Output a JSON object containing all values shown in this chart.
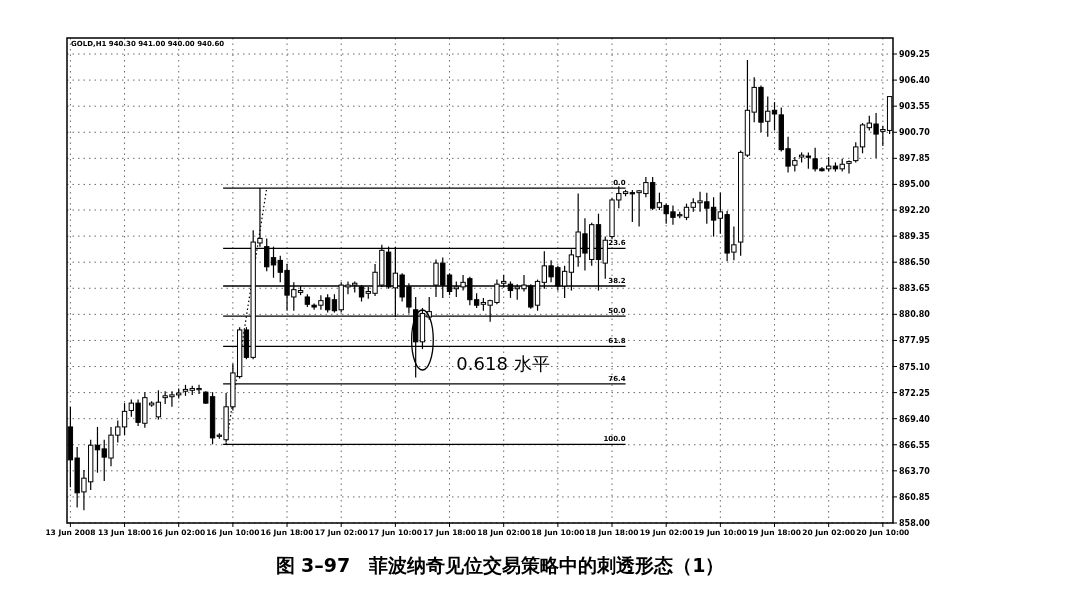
{
  "chart_data": {
    "type": "candlestick",
    "title": "GOLD,H1 940.30 941.00 940.00 940.60",
    "annotations": [
      "0.618 水平",
      "图 3–97　菲波纳奇见位交易策略中的刺透形态（1）",
      {
        "text": "0.0",
        "y": 894.6
      },
      {
        "text": "23.6",
        "y": 888.0
      },
      {
        "text": "38.2",
        "y": 883.9
      },
      {
        "text": "50.0",
        "y": 880.6
      },
      {
        "text": "61.8",
        "y": 877.3
      },
      {
        "text": "76.4",
        "y": 873.2
      },
      {
        "text": "100.0",
        "y": 866.6
      }
    ],
    "categories": [
      "13 Jun 2008",
      null,
      null,
      null,
      null,
      null,
      null,
      null,
      "13 Jun 18:00",
      null,
      null,
      null,
      null,
      null,
      null,
      null,
      "16 Jun 02:00",
      null,
      null,
      null,
      null,
      null,
      null,
      null,
      "16 Jun 10:00",
      null,
      null,
      null,
      null,
      null,
      null,
      null,
      "16 Jun 18:00",
      null,
      null,
      null,
      null,
      null,
      null,
      null,
      "17 Jun 02:00",
      null,
      null,
      null,
      null,
      null,
      null,
      null,
      "17 Jun 10:00",
      null,
      null,
      null,
      null,
      null,
      null,
      null,
      "17 Jun 18:00",
      null,
      null,
      null,
      null,
      null,
      null,
      null,
      "18 Jun 02:00",
      null,
      null,
      null,
      null,
      null,
      null,
      null,
      "18 Jun 10:00",
      null,
      null,
      null,
      null,
      null,
      null,
      null,
      "18 Jun 18:00",
      null,
      null,
      null,
      null,
      null,
      null,
      null,
      "19 Jun 02:00",
      null,
      null,
      null,
      null,
      null,
      null,
      null,
      "19 Jun 10:00",
      null,
      null,
      null,
      null,
      null,
      null,
      null,
      "19 Jun 18:00",
      null,
      null,
      null,
      null,
      null,
      null,
      null,
      "20 Jun 02:00",
      null,
      null,
      null,
      null,
      null,
      null,
      null,
      "20 Jun 10:00",
      null
    ],
    "ohlc": [
      [
        868.5,
        870.7,
        861.9,
        864.9
      ],
      [
        865.1,
        866.3,
        859.7,
        861.3
      ],
      [
        861.4,
        863.8,
        859.4,
        862.9
      ],
      [
        862.5,
        867.1,
        861.6,
        866.5
      ],
      [
        866.5,
        868.5,
        863.5,
        866.0
      ],
      [
        866.1,
        867.1,
        862.6,
        865.2
      ],
      [
        865.1,
        868.5,
        864.2,
        867.6
      ],
      [
        867.6,
        869.2,
        866.8,
        868.5
      ],
      [
        868.5,
        871.1,
        867.6,
        870.2
      ],
      [
        870.3,
        871.5,
        869.6,
        871.1
      ],
      [
        871.1,
        871.5,
        868.6,
        869.0
      ],
      [
        868.9,
        872.3,
        868.4,
        871.7
      ],
      [
        870.9,
        871.3,
        870.7,
        871.1
      ],
      [
        869.6,
        872.5,
        869.3,
        871.2
      ],
      [
        871.7,
        872.4,
        871.0,
        871.9
      ],
      [
        871.8,
        872.4,
        870.7,
        872.0
      ],
      [
        872.0,
        872.7,
        871.6,
        872.2
      ],
      [
        872.4,
        873.1,
        871.9,
        872.6
      ],
      [
        872.5,
        873.0,
        872.0,
        872.7
      ],
      [
        872.6,
        873.1,
        872.1,
        872.7
      ],
      [
        872.3,
        872.4,
        871.0,
        871.1
      ],
      [
        871.8,
        872.3,
        866.6,
        867.3
      ],
      [
        867.5,
        867.8,
        867.2,
        867.6
      ],
      [
        867.1,
        872.2,
        866.8,
        870.7
      ],
      [
        870.7,
        875.4,
        870.3,
        874.4
      ],
      [
        874.0,
        879.4,
        873.8,
        879.1
      ],
      [
        879.1,
        879.4,
        875.9,
        876.1
      ],
      [
        876.1,
        890.0,
        875.9,
        888.7
      ],
      [
        888.6,
        894.6,
        888.2,
        889.1
      ],
      [
        888.2,
        889.1,
        885.5,
        886.0
      ],
      [
        887.0,
        888.2,
        884.8,
        886.2
      ],
      [
        886.7,
        887.2,
        884.3,
        885.4
      ],
      [
        885.6,
        886.3,
        881.2,
        882.9
      ],
      [
        882.7,
        884.3,
        881.2,
        883.5
      ],
      [
        883.2,
        883.9,
        882.9,
        883.4
      ],
      [
        882.7,
        883.0,
        881.6,
        881.9
      ],
      [
        881.8,
        882.0,
        881.3,
        881.6
      ],
      [
        881.8,
        882.9,
        881.3,
        882.3
      ],
      [
        882.6,
        883.0,
        881.0,
        881.3
      ],
      [
        882.4,
        883.0,
        881.0,
        881.2
      ],
      [
        881.3,
        884.3,
        881.0,
        884.0
      ],
      [
        883.8,
        884.4,
        883.0,
        884.0
      ],
      [
        884.0,
        884.4,
        883.2,
        884.2
      ],
      [
        883.8,
        884.0,
        882.2,
        882.7
      ],
      [
        883.1,
        883.8,
        882.5,
        883.3
      ],
      [
        883.1,
        886.3,
        882.8,
        885.4
      ],
      [
        884.0,
        888.4,
        883.8,
        887.8
      ],
      [
        887.6,
        888.2,
        883.6,
        883.8
      ],
      [
        883.7,
        888.2,
        880.5,
        885.3
      ],
      [
        885.1,
        885.3,
        882.2,
        882.7
      ],
      [
        883.8,
        884.2,
        880.9,
        881.6
      ],
      [
        881.3,
        882.7,
        873.9,
        877.8
      ],
      [
        877.8,
        881.5,
        877.0,
        880.9
      ],
      [
        880.5,
        882.7,
        880.2,
        881.1
      ],
      [
        884.0,
        886.8,
        882.7,
        886.4
      ],
      [
        886.4,
        887.0,
        882.6,
        884.0
      ],
      [
        885.1,
        885.3,
        882.9,
        883.3
      ],
      [
        883.6,
        884.4,
        882.7,
        883.8
      ],
      [
        883.8,
        885.1,
        883.4,
        884.3
      ],
      [
        884.7,
        884.9,
        881.8,
        882.4
      ],
      [
        882.4,
        883.1,
        881.5,
        881.8
      ],
      [
        881.9,
        882.6,
        881.2,
        882.1
      ],
      [
        881.8,
        882.4,
        880.0,
        882.3
      ],
      [
        882.1,
        884.6,
        881.9,
        884.1
      ],
      [
        884.2,
        885.1,
        883.7,
        884.4
      ],
      [
        884.1,
        884.4,
        882.6,
        883.4
      ],
      [
        883.6,
        884.1,
        882.4,
        883.8
      ],
      [
        883.6,
        885.1,
        883.3,
        884.0
      ],
      [
        883.9,
        884.1,
        881.4,
        881.6
      ],
      [
        881.8,
        884.6,
        881.2,
        884.4
      ],
      [
        884.3,
        887.7,
        883.6,
        886.1
      ],
      [
        886.1,
        886.7,
        884.3,
        884.9
      ],
      [
        885.9,
        886.1,
        883.4,
        883.9
      ],
      [
        883.9,
        886.1,
        882.6,
        885.5
      ],
      [
        885.4,
        887.9,
        883.4,
        887.3
      ],
      [
        887.1,
        894.0,
        886.0,
        889.8
      ],
      [
        889.6,
        891.3,
        885.6,
        887.5
      ],
      [
        886.8,
        890.8,
        886.1,
        890.6
      ],
      [
        890.6,
        891.8,
        883.4,
        886.8
      ],
      [
        886.4,
        889.3,
        884.7,
        888.9
      ],
      [
        889.3,
        893.5,
        889.0,
        893.3
      ],
      [
        893.3,
        894.8,
        892.4,
        894.0
      ],
      [
        894.0,
        894.4,
        893.7,
        894.2
      ],
      [
        894.1,
        894.4,
        890.9,
        894.0
      ],
      [
        894.1,
        894.4,
        890.4,
        894.3
      ],
      [
        894.0,
        895.8,
        893.6,
        895.2
      ],
      [
        895.2,
        895.8,
        892.2,
        892.4
      ],
      [
        892.5,
        894.1,
        892.2,
        893.0
      ],
      [
        892.7,
        892.9,
        890.7,
        891.8
      ],
      [
        892.0,
        892.7,
        890.6,
        891.4
      ],
      [
        891.6,
        892.0,
        891.3,
        891.7
      ],
      [
        891.4,
        892.9,
        891.1,
        892.5
      ],
      [
        892.5,
        893.5,
        892.0,
        893.0
      ],
      [
        893.0,
        894.2,
        892.0,
        893.2
      ],
      [
        893.1,
        894.1,
        890.7,
        892.4
      ],
      [
        892.5,
        893.6,
        889.3,
        891.1
      ],
      [
        891.3,
        894.1,
        889.6,
        892.0
      ],
      [
        891.7,
        892.1,
        886.6,
        887.5
      ],
      [
        887.6,
        890.4,
        886.7,
        888.4
      ],
      [
        888.7,
        898.7,
        887.2,
        898.5
      ],
      [
        898.2,
        908.6,
        898.0,
        903.1
      ],
      [
        902.9,
        906.7,
        901.8,
        905.6
      ],
      [
        905.6,
        905.8,
        900.7,
        901.8
      ],
      [
        901.9,
        904.6,
        900.2,
        903.0
      ],
      [
        903.1,
        904.0,
        900.9,
        902.7
      ],
      [
        902.6,
        903.4,
        898.6,
        898.8
      ],
      [
        898.9,
        900.2,
        896.3,
        897.0
      ],
      [
        897.1,
        898.0,
        896.4,
        897.6
      ],
      [
        898.0,
        898.5,
        897.4,
        898.2
      ],
      [
        898.1,
        898.5,
        896.7,
        898.0
      ],
      [
        897.8,
        899.0,
        896.4,
        896.7
      ],
      [
        896.7,
        896.9,
        896.4,
        896.5
      ],
      [
        896.7,
        898.0,
        896.4,
        897.0
      ],
      [
        897.0,
        897.4,
        896.4,
        896.7
      ],
      [
        896.7,
        897.8,
        896.4,
        897.2
      ],
      [
        897.3,
        897.6,
        896.2,
        897.5
      ],
      [
        897.6,
        899.6,
        897.4,
        899.1
      ],
      [
        899.1,
        901.7,
        898.4,
        901.5
      ],
      [
        901.2,
        902.5,
        900.9,
        901.7
      ],
      [
        901.6,
        902.8,
        897.9,
        900.5
      ],
      [
        900.8,
        901.4,
        899.2,
        901.0
      ],
      [
        900.9,
        904.6,
        900.5,
        904.6
      ]
    ],
    "ylim": [
      858,
      911
    ],
    "yticks": [
      {
        "value": 858,
        "label": "858.00"
      },
      {
        "value": 860.85,
        "label": "860.85"
      },
      {
        "value": 863.7,
        "label": "863.70"
      },
      {
        "value": 866.55,
        "label": "866.55"
      },
      {
        "value": 869.4,
        "label": "869.40"
      },
      {
        "value": 872.25,
        "label": "872.25"
      },
      {
        "value": 875.1,
        "label": "875.10"
      },
      {
        "value": 877.95,
        "label": "877.95"
      },
      {
        "value": 880.8,
        "label": "880.80"
      },
      {
        "value": 883.65,
        "label": "883.65"
      },
      {
        "value": 886.5,
        "label": "886.50"
      },
      {
        "value": 889.35,
        "label": "889.35"
      },
      {
        "value": 892.2,
        "label": "892.20"
      },
      {
        "value": 895,
        "label": "895.00"
      },
      {
        "value": 897.85,
        "label": "897.85"
      },
      {
        "value": 900.7,
        "label": "900.70"
      },
      {
        "value": 903.55,
        "label": "903.55"
      },
      {
        "value": 906.4,
        "label": "906.40"
      },
      {
        "value": 909.25,
        "label": "909.25"
      }
    ],
    "ref_lines": [
      {
        "axis": "y",
        "value": 894.6
      },
      {
        "axis": "y",
        "value": 888.0
      },
      {
        "axis": "y",
        "value": 883.9
      },
      {
        "axis": "y",
        "value": 880.6
      },
      {
        "axis": "y",
        "value": 877.3
      },
      {
        "axis": "y",
        "value": 873.2
      },
      {
        "axis": "y",
        "value": 866.6
      }
    ],
    "series": [
      {
        "type": "line",
        "line_style": "dotted",
        "values": [
          null,
          null,
          null,
          null,
          null,
          null,
          null,
          null,
          null,
          null,
          null,
          null,
          null,
          null,
          null,
          null,
          null,
          null,
          null,
          null,
          null,
          null,
          null,
          866.6,
          871.3,
          875.9,
          880.6,
          885.3,
          889.9,
          894.6,
          null,
          null,
          null,
          null,
          null,
          null,
          null,
          null,
          null,
          null,
          null,
          null,
          null,
          null,
          null,
          null,
          null,
          null,
          null,
          null,
          null,
          null,
          null,
          null,
          null,
          null,
          null,
          null,
          null,
          null,
          null,
          null,
          null,
          null,
          null,
          null,
          null,
          null,
          null,
          null,
          null,
          null,
          null,
          null,
          null,
          null,
          null,
          null,
          null,
          null,
          null,
          null,
          null,
          null,
          null,
          null,
          null,
          null,
          null,
          null,
          null,
          null,
          null,
          null,
          null,
          null,
          null,
          null,
          null,
          null,
          null,
          null,
          null,
          null,
          null,
          null,
          null,
          null,
          null,
          null,
          null,
          null,
          null,
          null,
          null,
          null,
          null,
          null,
          null,
          null,
          null,
          null
        ]
      }
    ],
    "grid": true
  }
}
